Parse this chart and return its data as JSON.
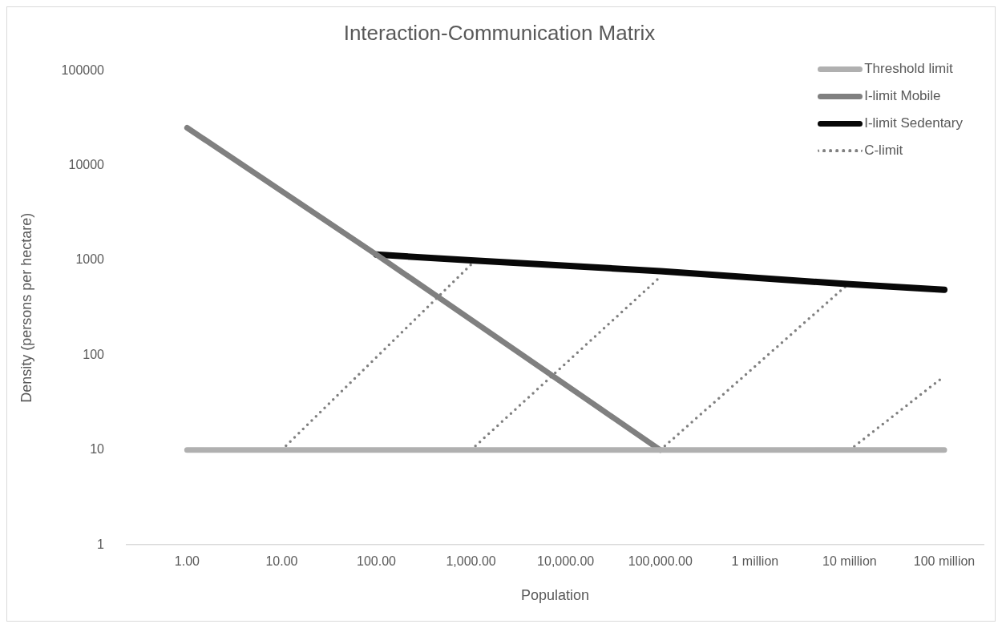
{
  "chart_data": {
    "type": "line",
    "title": "Interaction-Communication Matrix",
    "xlabel": "Population",
    "ylabel": "Density (persons per hectare)",
    "log": "xy",
    "grid": false,
    "legend": "top right",
    "marker": "none",
    "xlim": [
      0.23,
      260000000
    ],
    "xticks": [
      {
        "value": 1,
        "label": "1.00"
      },
      {
        "value": 10,
        "label": "10.00"
      },
      {
        "value": 100,
        "label": "100.00"
      },
      {
        "value": 1000,
        "label": "1,000.00"
      },
      {
        "value": 10000,
        "label": "10,000.00"
      },
      {
        "value": 100000,
        "label": "100,000.00"
      },
      {
        "value": 1000000,
        "label": "1 million"
      },
      {
        "value": 10000000,
        "label": "10 million"
      },
      {
        "value": 100000000,
        "label": "100 million"
      }
    ],
    "ylim": [
      1,
      100000
    ],
    "yticks": [
      1,
      10,
      100,
      1000,
      10000,
      100000
    ],
    "series": [
      {
        "name": "Threshold limit",
        "color": "#b0b0b0",
        "line_style": "solid",
        "x": [
          1,
          100000000
        ],
        "values": [
          10,
          10
        ]
      },
      {
        "name": "I-limit Mobile",
        "color": "#808080",
        "line_style": "solid",
        "x": [
          1,
          100,
          100000
        ],
        "values": [
          25000,
          1150,
          10
        ]
      },
      {
        "name": "I-limit Sedentary",
        "color": "#080808",
        "line_style": "solid",
        "x": [
          100,
          1000,
          100000,
          10000000,
          100000000
        ],
        "values": [
          1150,
          1000,
          770,
          560,
          490
        ]
      },
      {
        "name": "C-limit",
        "color": "#808080",
        "line_style": "dotted",
        "x": [
          10,
          1000
        ],
        "values": [
          10,
          900
        ]
      },
      {
        "color": "#808080",
        "line_style": "dotted",
        "x": [
          1000,
          100000
        ],
        "values": [
          10,
          670
        ]
      },
      {
        "color": "#808080",
        "line_style": "dotted",
        "x": [
          100000,
          10000000
        ],
        "values": [
          10,
          580
        ]
      },
      {
        "color": "#808080",
        "line_style": "dotted",
        "x": [
          10000000,
          100000000
        ],
        "values": [
          10,
          60
        ]
      }
    ]
  }
}
